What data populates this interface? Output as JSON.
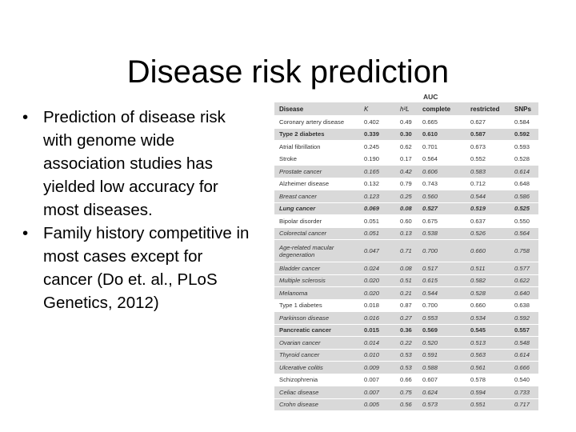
{
  "slide": {
    "title": "Disease risk prediction",
    "bullets": [
      "Prediction of disease risk with genome wide association studies has yielded low accuracy for most diseases.",
      "Family history competitive in most cases except for cancer (Do et. al., PLoS Genetics, 2012)"
    ]
  },
  "table": {
    "group_header": "AUC",
    "columns": [
      "Disease",
      "K",
      "h²L",
      "complete",
      "restricted",
      "SNPs"
    ],
    "rows": [
      {
        "disease": "Coronary artery disease",
        "K": "0.402",
        "h2l": "0.49",
        "complete": "0.665",
        "restricted": "0.627",
        "snps": "0.584"
      },
      {
        "disease": "Type 2 diabetes",
        "K": "0.339",
        "h2l": "0.30",
        "complete": "0.610",
        "restricted": "0.587",
        "snps": "0.592"
      },
      {
        "disease": "Atrial fibrillation",
        "K": "0.245",
        "h2l": "0.62",
        "complete": "0.701",
        "restricted": "0.673",
        "snps": "0.593"
      },
      {
        "disease": "Stroke",
        "K": "0.190",
        "h2l": "0.17",
        "complete": "0.564",
        "restricted": "0.552",
        "snps": "0.528"
      },
      {
        "disease": "Prostate cancer",
        "K": "0.165",
        "h2l": "0.42",
        "complete": "0.606",
        "restricted": "0.583",
        "snps": "0.614"
      },
      {
        "disease": "Alzheimer disease",
        "K": "0.132",
        "h2l": "0.79",
        "complete": "0.743",
        "restricted": "0.712",
        "snps": "0.648"
      },
      {
        "disease": "Breast cancer",
        "K": "0.123",
        "h2l": "0.25",
        "complete": "0.560",
        "restricted": "0.544",
        "snps": "0.586"
      },
      {
        "disease": "Lung cancer",
        "K": "0.069",
        "h2l": "0.08",
        "complete": "0.527",
        "restricted": "0.519",
        "snps": "0.525"
      },
      {
        "disease": "Bipolar disorder",
        "K": "0.051",
        "h2l": "0.60",
        "complete": "0.675",
        "restricted": "0.637",
        "snps": "0.550"
      },
      {
        "disease": "Colorectal cancer",
        "K": "0.051",
        "h2l": "0.13",
        "complete": "0.538",
        "restricted": "0.526",
        "snps": "0.564"
      },
      {
        "disease": "Age-related macular degeneration",
        "K": "0.047",
        "h2l": "0.71",
        "complete": "0.700",
        "restricted": "0.660",
        "snps": "0.758"
      },
      {
        "disease": "Bladder cancer",
        "K": "0.024",
        "h2l": "0.08",
        "complete": "0.517",
        "restricted": "0.511",
        "snps": "0.577"
      },
      {
        "disease": "Multiple sclerosis",
        "K": "0.020",
        "h2l": "0.51",
        "complete": "0.615",
        "restricted": "0.582",
        "snps": "0.622"
      },
      {
        "disease": "Melanoma",
        "K": "0.020",
        "h2l": "0.21",
        "complete": "0.544",
        "restricted": "0.528",
        "snps": "0.640"
      },
      {
        "disease": "Type 1 diabetes",
        "K": "0.018",
        "h2l": "0.87",
        "complete": "0.700",
        "restricted": "0.660",
        "snps": "0.638"
      },
      {
        "disease": "Parkinson disease",
        "K": "0.016",
        "h2l": "0.27",
        "complete": "0.553",
        "restricted": "0.534",
        "snps": "0.592"
      },
      {
        "disease": "Pancreatic cancer",
        "K": "0.015",
        "h2l": "0.36",
        "complete": "0.569",
        "restricted": "0.545",
        "snps": "0.557"
      },
      {
        "disease": "Ovarian cancer",
        "K": "0.014",
        "h2l": "0.22",
        "complete": "0.520",
        "restricted": "0.513",
        "snps": "0.548"
      },
      {
        "disease": "Thyroid cancer",
        "K": "0.010",
        "h2l": "0.53",
        "complete": "0.591",
        "restricted": "0.563",
        "snps": "0.614"
      },
      {
        "disease": "Ulcerative colitis",
        "K": "0.009",
        "h2l": "0.53",
        "complete": "0.588",
        "restricted": "0.561",
        "snps": "0.666"
      },
      {
        "disease": "Schizophrenia",
        "K": "0.007",
        "h2l": "0.66",
        "complete": "0.607",
        "restricted": "0.578",
        "snps": "0.540"
      },
      {
        "disease": "Celiac disease",
        "K": "0.007",
        "h2l": "0.75",
        "complete": "0.624",
        "restricted": "0.594",
        "snps": "0.733"
      },
      {
        "disease": "Crohn disease",
        "K": "0.005",
        "h2l": "0.56",
        "complete": "0.573",
        "restricted": "0.551",
        "snps": "0.717"
      }
    ]
  }
}
